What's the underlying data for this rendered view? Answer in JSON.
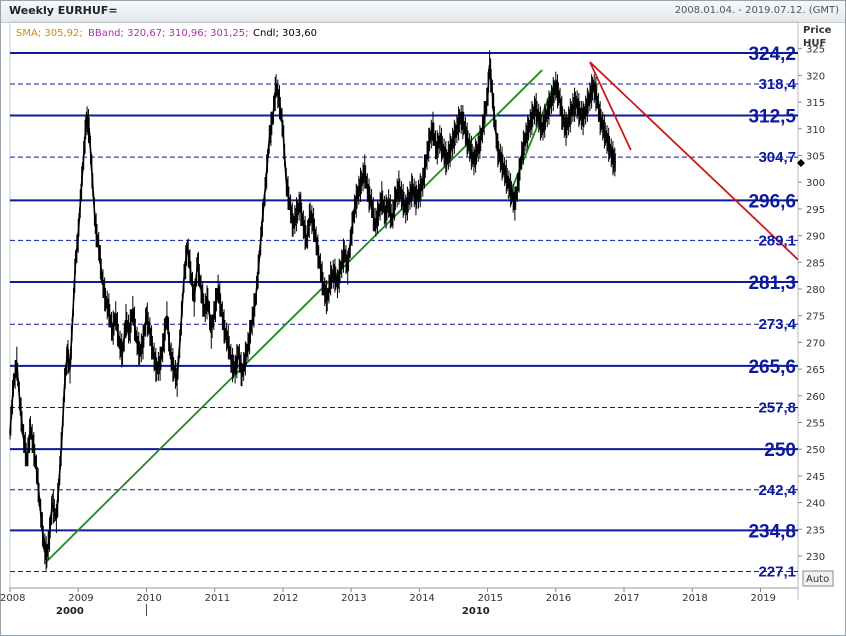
{
  "header": {
    "title": "Weekly EURHUF=",
    "date_range": "2008.01.04. - 2019.07.12. (GMT)"
  },
  "legend": {
    "sma_label": "SMA; 305,92;",
    "sma_color": "#d58a00",
    "bband_label": "BBand; 320,67; 310,96; 301,25;",
    "bband_color": "#b030b0",
    "cndl_label": "Cndl; 303,60",
    "cndl_color": "#000000"
  },
  "y_axis_title": [
    "Price",
    "HUF"
  ],
  "auto_button": "Auto",
  "chart_data": {
    "type": "line",
    "ylim": [
      224,
      330
    ],
    "xlim": [
      2008.0,
      2019.55
    ],
    "y_ticks": [
      230,
      235,
      240,
      245,
      250,
      255,
      260,
      265,
      270,
      275,
      280,
      285,
      290,
      295,
      300,
      305,
      310,
      315,
      320,
      325
    ],
    "y_tick_labels": [
      "230",
      "235",
      "240",
      "245",
      "250",
      "255",
      "260",
      "265",
      "270",
      "275",
      "280",
      "285",
      "290",
      "295",
      "300",
      "305",
      "310",
      "315",
      "320",
      "325"
    ],
    "x_ticks": [
      2008,
      2009,
      2010,
      2011,
      2012,
      2013,
      2014,
      2015,
      2016,
      2017,
      2018,
      2019
    ],
    "x_tick_labels": [
      "2008",
      "2009",
      "2010",
      "2011",
      "2012",
      "2013",
      "2014",
      "2015",
      "2016",
      "2017",
      "2018",
      "2019"
    ],
    "x_group_labels": [
      {
        "x": 2008.85,
        "label": "2000"
      },
      {
        "x": 2014.8,
        "label": "2010"
      }
    ],
    "current_price": 303.6,
    "series": [
      {
        "values": [
          [
            2008.0,
            253.0
          ],
          [
            2008.05,
            262.0
          ],
          [
            2008.1,
            266.0
          ],
          [
            2008.15,
            258.0
          ],
          [
            2008.2,
            252.0
          ],
          [
            2008.25,
            248.0
          ],
          [
            2008.3,
            254.0
          ],
          [
            2008.35,
            250.0
          ],
          [
            2008.4,
            245.0
          ],
          [
            2008.45,
            238.0
          ],
          [
            2008.5,
            232.0
          ],
          [
            2008.54,
            230.0
          ],
          [
            2008.58,
            234.0
          ],
          [
            2008.62,
            240.0
          ],
          [
            2008.68,
            237.0
          ],
          [
            2008.72,
            244.0
          ],
          [
            2008.76,
            252.0
          ],
          [
            2008.8,
            262.0
          ],
          [
            2008.84,
            268.0
          ],
          [
            2008.88,
            265.0
          ],
          [
            2008.92,
            275.0
          ],
          [
            2008.96,
            285.0
          ],
          [
            2009.0,
            290.0
          ],
          [
            2009.04,
            298.0
          ],
          [
            2009.08,
            305.0
          ],
          [
            2009.12,
            312.0
          ],
          [
            2009.16,
            310.0
          ],
          [
            2009.2,
            302.0
          ],
          [
            2009.25,
            292.0
          ],
          [
            2009.3,
            288.0
          ],
          [
            2009.35,
            282.0
          ],
          [
            2009.4,
            278.0
          ],
          [
            2009.45,
            276.0
          ],
          [
            2009.5,
            272.0
          ],
          [
            2009.55,
            275.0
          ],
          [
            2009.6,
            270.0
          ],
          [
            2009.65,
            268.0
          ],
          [
            2009.7,
            274.0
          ],
          [
            2009.75,
            272.0
          ],
          [
            2009.8,
            276.0
          ],
          [
            2009.85,
            271.0
          ],
          [
            2009.9,
            268.0
          ],
          [
            2009.95,
            270.0
          ],
          [
            2010.0,
            275.0
          ],
          [
            2010.05,
            272.0
          ],
          [
            2010.1,
            268.0
          ],
          [
            2010.15,
            265.0
          ],
          [
            2010.2,
            266.0
          ],
          [
            2010.25,
            270.0
          ],
          [
            2010.3,
            275.0
          ],
          [
            2010.35,
            268.0
          ],
          [
            2010.4,
            265.0
          ],
          [
            2010.45,
            263.0
          ],
          [
            2010.5,
            272.0
          ],
          [
            2010.55,
            282.0
          ],
          [
            2010.6,
            288.0
          ],
          [
            2010.65,
            283.0
          ],
          [
            2010.7,
            278.0
          ],
          [
            2010.75,
            285.0
          ],
          [
            2010.8,
            280.0
          ],
          [
            2010.85,
            276.0
          ],
          [
            2010.9,
            278.0
          ],
          [
            2010.95,
            272.0
          ],
          [
            2011.0,
            276.0
          ],
          [
            2011.05,
            280.0
          ],
          [
            2011.1,
            276.0
          ],
          [
            2011.15,
            272.0
          ],
          [
            2011.2,
            270.0
          ],
          [
            2011.25,
            266.0
          ],
          [
            2011.3,
            265.0
          ],
          [
            2011.35,
            268.0
          ],
          [
            2011.4,
            264.0
          ],
          [
            2011.45,
            267.0
          ],
          [
            2011.5,
            270.0
          ],
          [
            2011.55,
            274.0
          ],
          [
            2011.6,
            278.0
          ],
          [
            2011.65,
            285.0
          ],
          [
            2011.7,
            293.0
          ],
          [
            2011.75,
            300.0
          ],
          [
            2011.8,
            308.0
          ],
          [
            2011.85,
            312.0
          ],
          [
            2011.9,
            318.0
          ],
          [
            2011.95,
            315.0
          ],
          [
            2012.0,
            310.0
          ],
          [
            2012.05,
            300.0
          ],
          [
            2012.1,
            296.0
          ],
          [
            2012.15,
            292.0
          ],
          [
            2012.2,
            294.0
          ],
          [
            2012.25,
            296.0
          ],
          [
            2012.3,
            292.0
          ],
          [
            2012.35,
            289.0
          ],
          [
            2012.4,
            294.0
          ],
          [
            2012.45,
            292.0
          ],
          [
            2012.5,
            288.0
          ],
          [
            2012.55,
            284.0
          ],
          [
            2012.6,
            280.0
          ],
          [
            2012.65,
            278.0
          ],
          [
            2012.7,
            282.0
          ],
          [
            2012.75,
            283.0
          ],
          [
            2012.8,
            281.0
          ],
          [
            2012.85,
            284.0
          ],
          [
            2012.9,
            287.0
          ],
          [
            2012.95,
            284.0
          ],
          [
            2013.0,
            290.0
          ],
          [
            2013.05,
            295.0
          ],
          [
            2013.1,
            298.0
          ],
          [
            2013.15,
            300.0
          ],
          [
            2013.2,
            302.0
          ],
          [
            2013.25,
            298.0
          ],
          [
            2013.3,
            296.0
          ],
          [
            2013.35,
            292.0
          ],
          [
            2013.4,
            294.0
          ],
          [
            2013.45,
            297.0
          ],
          [
            2013.5,
            294.0
          ],
          [
            2013.55,
            296.0
          ],
          [
            2013.6,
            293.0
          ],
          [
            2013.65,
            297.0
          ],
          [
            2013.7,
            299.0
          ],
          [
            2013.75,
            297.0
          ],
          [
            2013.8,
            295.0
          ],
          [
            2013.85,
            297.0
          ],
          [
            2013.9,
            299.0
          ],
          [
            2013.95,
            297.0
          ],
          [
            2014.0,
            298.0
          ],
          [
            2014.05,
            300.0
          ],
          [
            2014.1,
            304.0
          ],
          [
            2014.15,
            308.0
          ],
          [
            2014.2,
            310.0
          ],
          [
            2014.25,
            306.0
          ],
          [
            2014.3,
            308.0
          ],
          [
            2014.35,
            306.0
          ],
          [
            2014.4,
            304.0
          ],
          [
            2014.45,
            306.0
          ],
          [
            2014.5,
            308.0
          ],
          [
            2014.55,
            310.0
          ],
          [
            2014.6,
            312.0
          ],
          [
            2014.65,
            311.0
          ],
          [
            2014.7,
            308.0
          ],
          [
            2014.75,
            306.0
          ],
          [
            2014.8,
            304.0
          ],
          [
            2014.85,
            306.0
          ],
          [
            2014.9,
            308.0
          ],
          [
            2014.95,
            312.0
          ],
          [
            2015.0,
            316.0
          ],
          [
            2015.03,
            322.0
          ],
          [
            2015.06,
            318.0
          ],
          [
            2015.1,
            312.0
          ],
          [
            2015.15,
            306.0
          ],
          [
            2015.2,
            304.0
          ],
          [
            2015.25,
            302.0
          ],
          [
            2015.3,
            300.0
          ],
          [
            2015.35,
            298.0
          ],
          [
            2015.4,
            296.0
          ],
          [
            2015.45,
            300.0
          ],
          [
            2015.5,
            305.0
          ],
          [
            2015.55,
            308.0
          ],
          [
            2015.6,
            310.0
          ],
          [
            2015.65,
            312.0
          ],
          [
            2015.7,
            314.0
          ],
          [
            2015.75,
            312.0
          ],
          [
            2015.8,
            310.0
          ],
          [
            2015.85,
            312.0
          ],
          [
            2015.9,
            314.0
          ],
          [
            2015.95,
            316.0
          ],
          [
            2016.0,
            318.0
          ],
          [
            2016.05,
            316.0
          ],
          [
            2016.1,
            312.0
          ],
          [
            2016.15,
            310.0
          ],
          [
            2016.2,
            312.0
          ],
          [
            2016.25,
            314.0
          ],
          [
            2016.3,
            315.0
          ],
          [
            2016.35,
            313.0
          ],
          [
            2016.4,
            312.0
          ],
          [
            2016.45,
            314.0
          ],
          [
            2016.5,
            316.0
          ],
          [
            2016.55,
            318.0
          ],
          [
            2016.6,
            316.0
          ],
          [
            2016.65,
            312.0
          ],
          [
            2016.7,
            310.0
          ],
          [
            2016.75,
            308.0
          ],
          [
            2016.8,
            306.0
          ],
          [
            2016.85,
            304.0
          ],
          [
            2016.88,
            303.6
          ]
        ]
      }
    ],
    "levels": [
      {
        "value": 324.2,
        "label": "324,2",
        "style": "solid"
      },
      {
        "value": 318.4,
        "label": "318,4",
        "style": "dashed"
      },
      {
        "value": 312.5,
        "label": "312,5",
        "style": "solid"
      },
      {
        "value": 304.7,
        "label": "304,7",
        "style": "dashed"
      },
      {
        "value": 296.6,
        "label": "296,6",
        "style": "solid"
      },
      {
        "value": 289.1,
        "label": "289,1",
        "style": "dashed"
      },
      {
        "value": 281.3,
        "label": "281,3",
        "style": "solid"
      },
      {
        "value": 273.4,
        "label": "273,4",
        "style": "dashed"
      },
      {
        "value": 265.6,
        "label": "265,6",
        "style": "solid"
      },
      {
        "value": 257.8,
        "label": "257,8",
        "style": "dashed"
      },
      {
        "value": 250,
        "label": "250",
        "style": "solid"
      },
      {
        "value": 242.4,
        "label": "242,4",
        "style": "dashed"
      },
      {
        "value": 234.8,
        "label": "234,8",
        "style": "solid"
      },
      {
        "value": 227.1,
        "label": "227,1",
        "style": "dashed"
      }
    ],
    "trendlines": [
      {
        "color": "#1e8a1e",
        "points": [
          [
            2008.5,
            228.5
          ],
          [
            2015.8,
            321.0
          ]
        ]
      },
      {
        "color": "#1e8a1e",
        "points": [
          [
            2015.3,
            297.0
          ],
          [
            2016.0,
            319.0
          ]
        ]
      },
      {
        "color": "#d01818",
        "points": [
          [
            2016.5,
            322.5
          ],
          [
            2019.55,
            285.5
          ]
        ]
      },
      {
        "color": "#d01818",
        "points": [
          [
            2016.5,
            322.5
          ],
          [
            2017.1,
            306.0
          ]
        ]
      }
    ]
  }
}
